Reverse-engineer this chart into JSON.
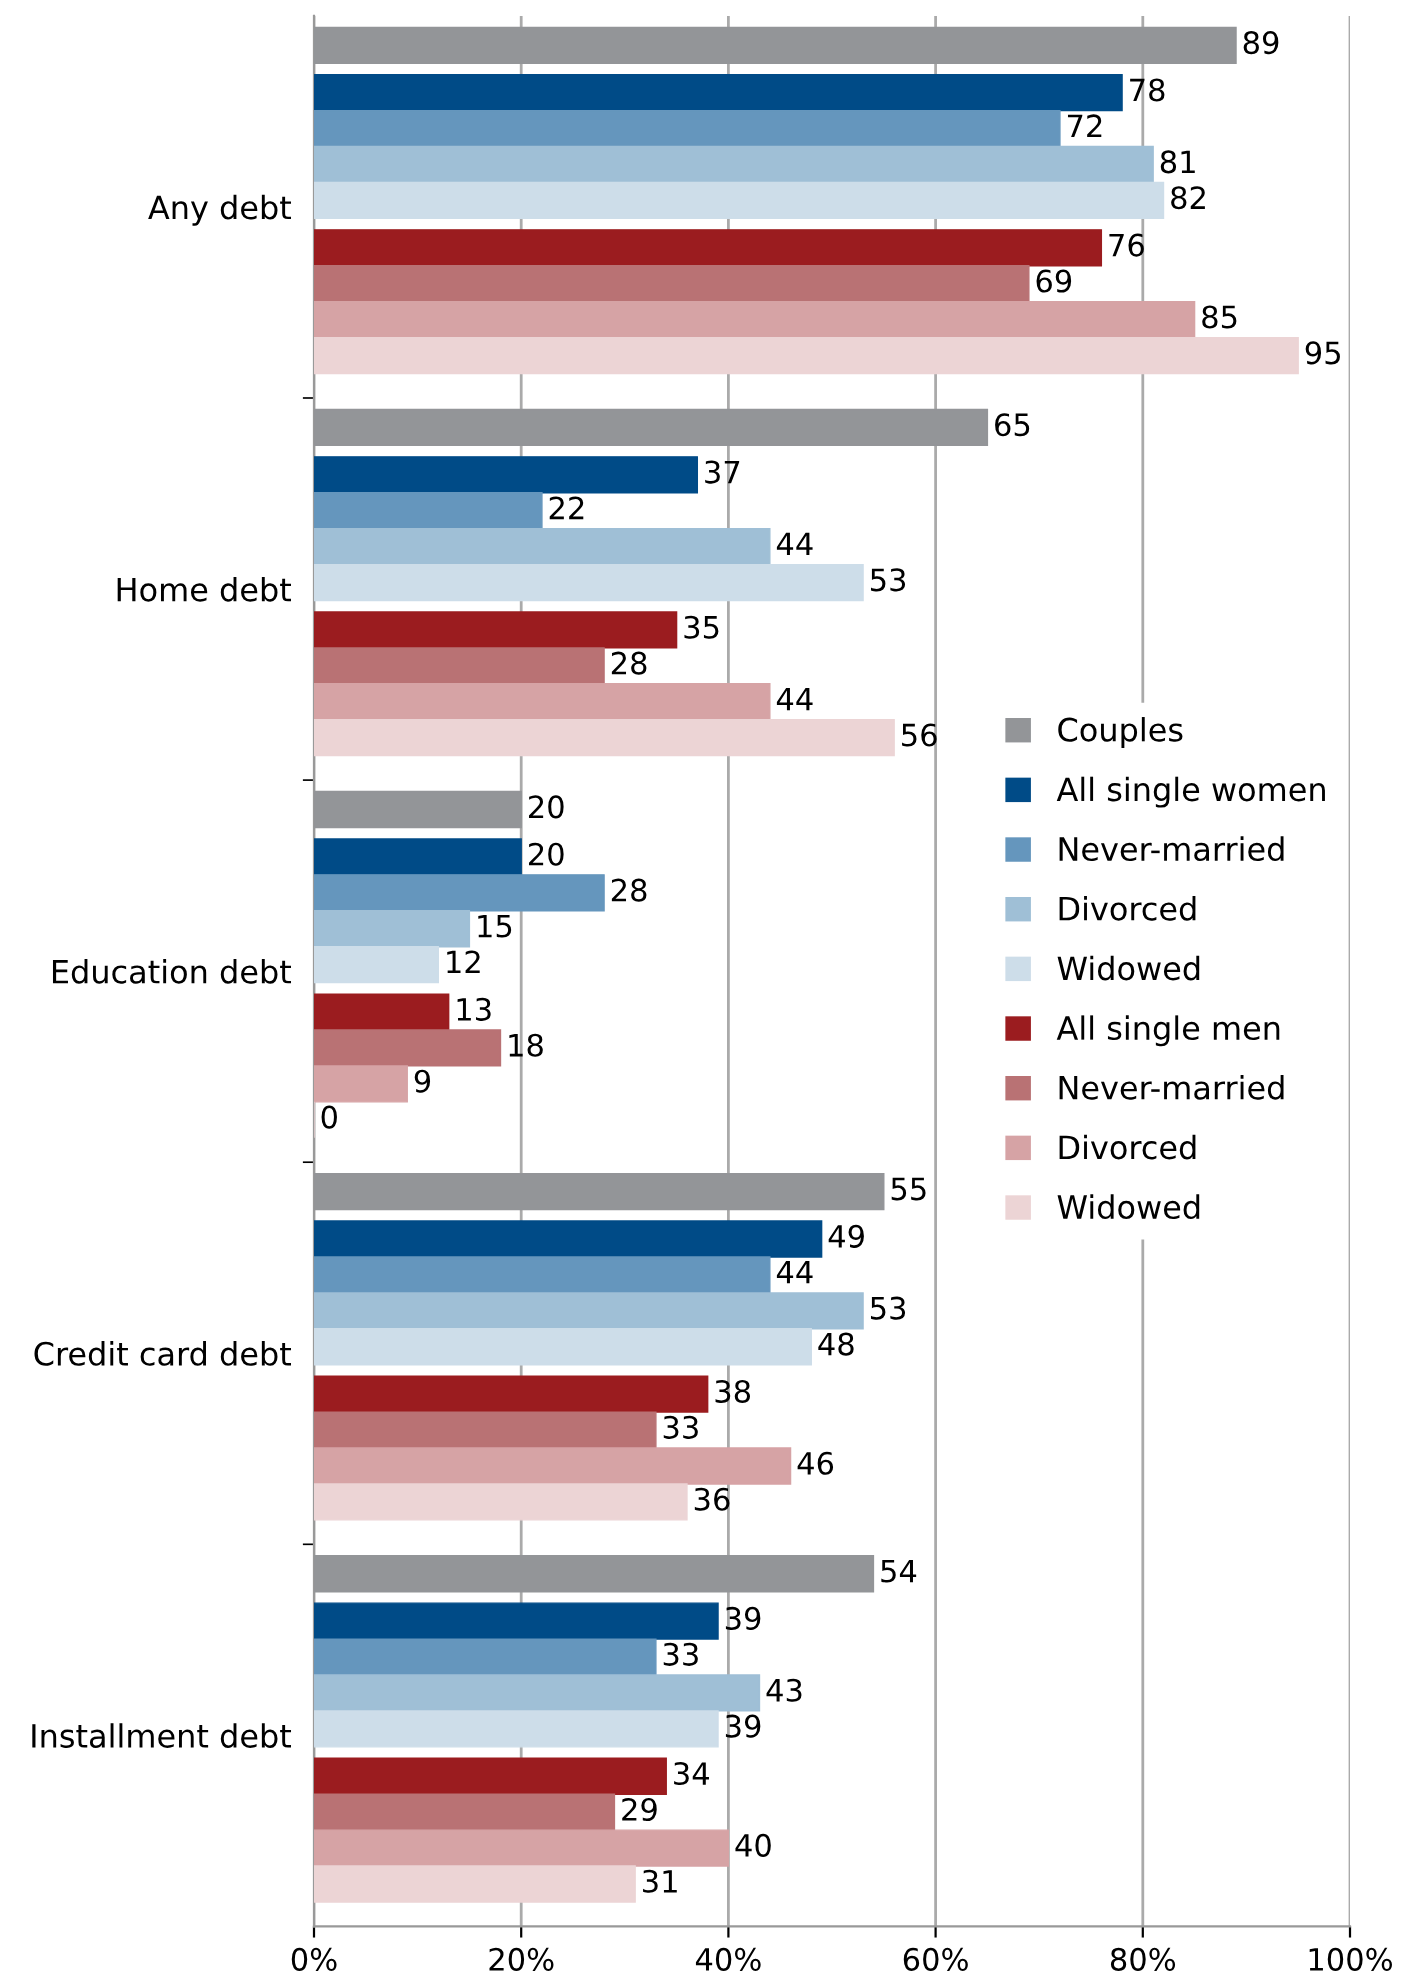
{
  "chart_data": {
    "type": "bar",
    "orientation": "horizontal",
    "categories": [
      "Any debt",
      "Home debt",
      "Education debt",
      "Credit card debt",
      "Installment debt"
    ],
    "series": [
      {
        "name": "Couples",
        "color": "#939598",
        "values": [
          89,
          65,
          20,
          55,
          54
        ]
      },
      {
        "name": "All single women",
        "color": "#004b87",
        "values": [
          78,
          37,
          20,
          49,
          39
        ]
      },
      {
        "name": "Never-married",
        "color": "#6596bd",
        "values": [
          72,
          22,
          28,
          44,
          33
        ]
      },
      {
        "name": "Divorced",
        "color": "#9fbfd6",
        "values": [
          81,
          44,
          15,
          53,
          43
        ]
      },
      {
        "name": "Widowed",
        "color": "#cddde9",
        "values": [
          82,
          53,
          12,
          48,
          39
        ]
      },
      {
        "name": "All single men",
        "color": "#9b1c1f",
        "values": [
          76,
          35,
          13,
          38,
          34
        ]
      },
      {
        "name": "Never-married",
        "color": "#b97274",
        "values": [
          69,
          28,
          18,
          33,
          29
        ]
      },
      {
        "name": "Divorced",
        "color": "#d6a3a5",
        "values": [
          85,
          44,
          9,
          46,
          40
        ]
      },
      {
        "name": "Widowed",
        "color": "#ecd4d5",
        "values": [
          95,
          56,
          0,
          36,
          31
        ]
      }
    ],
    "xlim": [
      0,
      100
    ],
    "xticks": [
      {
        "value": 0,
        "label": "0%"
      },
      {
        "value": 20,
        "label": "20%"
      },
      {
        "value": 40,
        "label": "40%"
      },
      {
        "value": 60,
        "label": "60%"
      },
      {
        "value": 80,
        "label": "80%"
      },
      {
        "value": 100,
        "label": "100%"
      }
    ],
    "grid": "x",
    "legend": "right",
    "data_labels": true
  }
}
